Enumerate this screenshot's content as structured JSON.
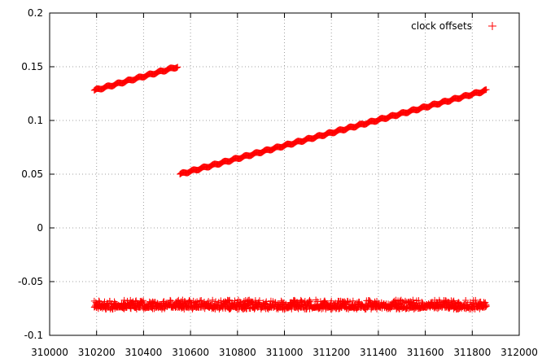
{
  "chart_data": {
    "type": "scatter",
    "title": "",
    "xlabel": "",
    "ylabel": "",
    "xlim": [
      310000,
      312000
    ],
    "ylim": [
      -0.1,
      0.2
    ],
    "x_ticks": [
      310000,
      310200,
      310400,
      310600,
      310800,
      311000,
      311200,
      311400,
      311600,
      311800,
      312000
    ],
    "x_tick_labels": [
      "310000",
      "310200",
      "310400",
      "310600",
      "310800",
      "311000",
      "311200",
      "311400",
      "311600",
      "311800",
      "312000"
    ],
    "y_ticks": [
      -0.1,
      -0.05,
      0,
      0.05,
      0.1,
      0.15,
      0.2
    ],
    "y_tick_labels": [
      "-0.1",
      "-0.05",
      "0",
      "0.05",
      "0.1",
      "0.15",
      "0.2"
    ],
    "grid": true,
    "legend_position": "top-right",
    "series": [
      {
        "name": "clock offsets",
        "color": "#ff0000",
        "marker": "plus",
        "segments": [
          {
            "x_start": 310190,
            "x_end": 310545,
            "y_start": 0.128,
            "y_end": 0.15
          },
          {
            "x_start": 310555,
            "x_end": 311860,
            "y_start": 0.05,
            "y_end": 0.128
          }
        ],
        "noise_band": {
          "x_start": 310190,
          "x_end": 311860,
          "y_min": -0.078,
          "y_max": -0.067
        }
      }
    ]
  }
}
